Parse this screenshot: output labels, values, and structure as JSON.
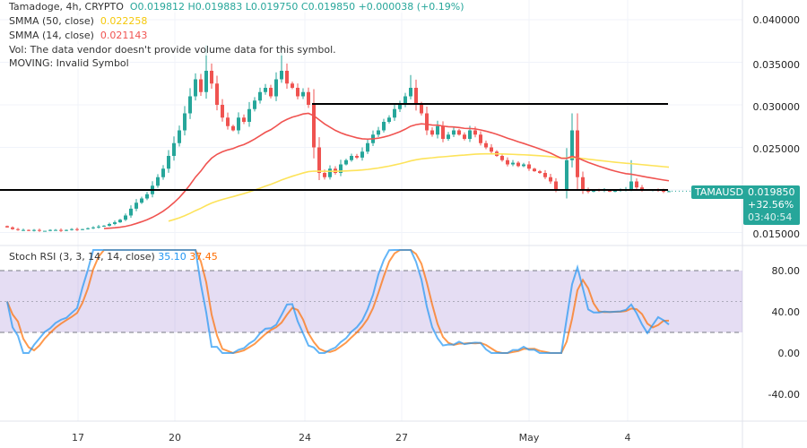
{
  "header": {
    "symbol_line": "Tamadoge, 4h, CRYPTO",
    "o": "O0.019812",
    "h": "H0.019883",
    "l": "L0.019750",
    "c": "C0.019850",
    "change": "+0.000038 (+0.19%)"
  },
  "indicators": [
    {
      "label": "SMMA (50, close)",
      "value": "0.022258",
      "color": "#f5d90a"
    },
    {
      "label": "SMMA (14, close)",
      "value": "0.021143",
      "color": "#f05350"
    }
  ],
  "notices": [
    "Vol: The data vendor doesn't provide volume data for this symbol.",
    "MOVING: Invalid Symbol"
  ],
  "price_axis": [
    "0.040000",
    "0.035000",
    "0.030000",
    "0.025000",
    "0.015000"
  ],
  "last_price": {
    "symbol": "TAMAUSD",
    "price": "0.019850",
    "change_pct": "+32.56%",
    "countdown": "03:40:54",
    "value": 0.01985
  },
  "stoch": {
    "label": "Stoch RSI (3, 3, 14, 14, close)",
    "k": "35.10",
    "d": "37.45",
    "k_color": "#2196f3",
    "d_color": "#ff6d00",
    "axis": [
      "80.00",
      "40.00",
      "0.00",
      "-40.00"
    ],
    "band": [
      20,
      80
    ]
  },
  "time_axis": [
    "17",
    "20",
    "24",
    "27",
    "May",
    "4"
  ],
  "levels": {
    "support": 0.02,
    "resistance": 0.0301
  },
  "colors": {
    "up": "#26a69a",
    "down": "#ef5350"
  },
  "closes": [
    0.0156,
    0.0154,
    0.0153,
    0.0153,
    0.0152,
    0.0153,
    0.0152,
    0.0152,
    0.0153,
    0.0153,
    0.0152,
    0.0153,
    0.0154,
    0.0153,
    0.0154,
    0.0155,
    0.0156,
    0.0157,
    0.0158,
    0.016,
    0.0162,
    0.0165,
    0.017,
    0.0178,
    0.0185,
    0.019,
    0.0195,
    0.0205,
    0.0215,
    0.0225,
    0.024,
    0.0255,
    0.027,
    0.029,
    0.031,
    0.033,
    0.0315,
    0.034,
    0.0325,
    0.03,
    0.0285,
    0.0275,
    0.027,
    0.0285,
    0.028,
    0.0295,
    0.0305,
    0.0315,
    0.032,
    0.031,
    0.033,
    0.034,
    0.0325,
    0.032,
    0.031,
    0.0315,
    0.03,
    0.025,
    0.022,
    0.0215,
    0.0225,
    0.022,
    0.023,
    0.0235,
    0.024,
    0.0238,
    0.0245,
    0.0255,
    0.0265,
    0.027,
    0.028,
    0.0285,
    0.0295,
    0.03,
    0.031,
    0.032,
    0.03,
    0.029,
    0.027,
    0.0265,
    0.0275,
    0.026,
    0.0265,
    0.027,
    0.0265,
    0.026,
    0.027,
    0.0265,
    0.0255,
    0.025,
    0.0245,
    0.024,
    0.0235,
    0.023,
    0.0232,
    0.0228,
    0.023,
    0.0225,
    0.0222,
    0.022,
    0.0215,
    0.021,
    0.02,
    0.02,
    0.0235,
    0.027,
    0.0215,
    0.02,
    0.0198,
    0.02,
    0.0199,
    0.02,
    0.0198,
    0.0199,
    0.02,
    0.0201,
    0.021,
    0.0203,
    0.02,
    0.0199,
    0.02,
    0.0199,
    0.0198,
    0.01985
  ]
}
